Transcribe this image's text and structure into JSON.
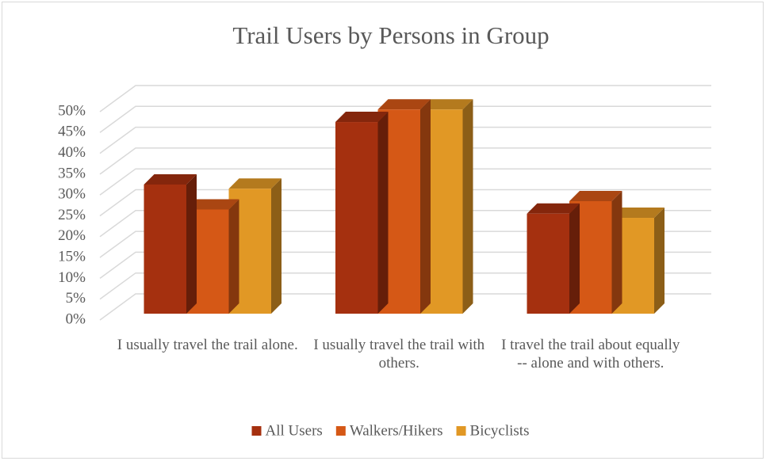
{
  "chart_data": {
    "type": "bar3d",
    "title": "Trail Users by Persons in Group",
    "categories": [
      "I usually travel the trail alone.",
      "I usually travel the trail with others.",
      "I travel the trail about equally -- alone and with others."
    ],
    "series": [
      {
        "name": "All Users",
        "color": "#a5300f",
        "values": [
          31,
          46,
          24
        ]
      },
      {
        "name": "Walkers/Hikers",
        "color": "#d55816",
        "values": [
          25,
          49,
          27
        ]
      },
      {
        "name": "Bicyclists",
        "color": "#e19825",
        "values": [
          30,
          49,
          23
        ]
      }
    ],
    "ylim": [
      0,
      50
    ],
    "yticks": [
      {
        "value": 0,
        "label": "0%"
      },
      {
        "value": 5,
        "label": "5%"
      },
      {
        "value": 10,
        "label": "10%"
      },
      {
        "value": 15,
        "label": "15%"
      },
      {
        "value": 20,
        "label": "20%"
      },
      {
        "value": 25,
        "label": "25%"
      },
      {
        "value": 30,
        "label": "30%"
      },
      {
        "value": 35,
        "label": "35%"
      },
      {
        "value": 40,
        "label": "40%"
      },
      {
        "value": 45,
        "label": "45%"
      },
      {
        "value": 50,
        "label": "50%"
      }
    ],
    "grid": true,
    "legend": "bottom"
  }
}
